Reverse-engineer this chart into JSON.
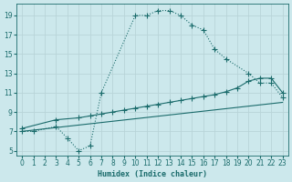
{
  "xlabel": "Humidex (Indice chaleur)",
  "xlim": [
    -0.5,
    23.5
  ],
  "ylim": [
    4.5,
    20.2
  ],
  "xticks": [
    0,
    1,
    2,
    3,
    4,
    5,
    6,
    7,
    8,
    9,
    10,
    11,
    12,
    13,
    14,
    15,
    16,
    17,
    18,
    19,
    20,
    21,
    22,
    23
  ],
  "yticks": [
    5,
    7,
    9,
    11,
    13,
    15,
    17,
    19
  ],
  "bg_color": "#cce8ec",
  "grid_color": "#b8d4d8",
  "line_color": "#1a6b6b",
  "line1_x": [
    0,
    1,
    3,
    4,
    5,
    6,
    7,
    10,
    11,
    12,
    13,
    14,
    15,
    16,
    17,
    18,
    20,
    21,
    22,
    23
  ],
  "line1_y": [
    7,
    7,
    7.5,
    6.3,
    5.0,
    5.5,
    11.0,
    19.0,
    19.0,
    19.5,
    19.5,
    19.0,
    18.0,
    17.5,
    15.5,
    14.5,
    13.0,
    12.0,
    12.0,
    10.5
  ],
  "line2_x": [
    0,
    3,
    5,
    6,
    7,
    8,
    9,
    10,
    11,
    12,
    13,
    14,
    15,
    16,
    17,
    18,
    19,
    20,
    21,
    22,
    23
  ],
  "line2_y": [
    7.3,
    8.2,
    8.4,
    8.6,
    8.8,
    9.0,
    9.2,
    9.4,
    9.6,
    9.8,
    10.0,
    10.2,
    10.4,
    10.6,
    10.8,
    11.1,
    11.5,
    12.2,
    12.5,
    12.5,
    11.0
  ],
  "line3_x": [
    0,
    23
  ],
  "line3_y": [
    7.0,
    10.0
  ]
}
